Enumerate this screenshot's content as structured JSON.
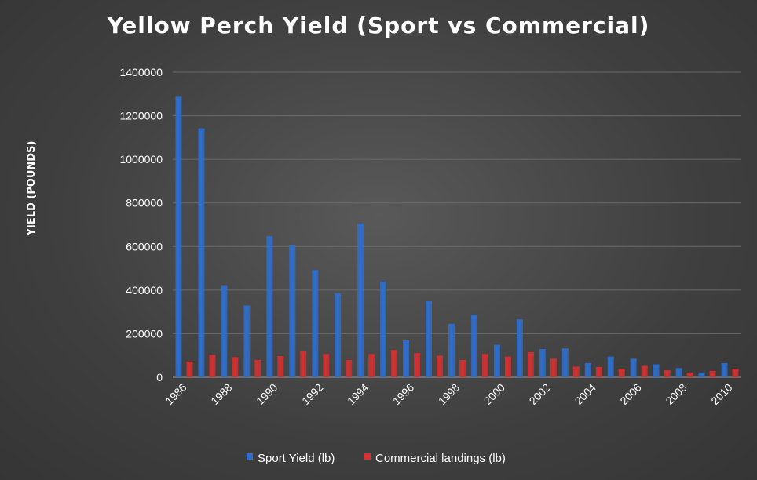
{
  "chart_data": {
    "type": "bar",
    "title": "Yellow Perch Yield (Sport vs Commercial)",
    "xlabel": "",
    "ylabel": "YIELD (POUNDS)",
    "ylim": [
      0,
      1400000
    ],
    "yticks": [
      0,
      200000,
      400000,
      600000,
      800000,
      1000000,
      1200000,
      1400000
    ],
    "ytick_labels": [
      "0",
      "200000",
      "400000",
      "600000",
      "800000",
      "1000000",
      "1200000",
      "1400000"
    ],
    "categories": [
      "1986",
      "1987",
      "1988",
      "1989",
      "1990",
      "1991",
      "1992",
      "1993",
      "1994",
      "1995",
      "1996",
      "1997",
      "1998",
      "1999",
      "2000",
      "2001",
      "2002",
      "2003",
      "2004",
      "2005",
      "2006",
      "2007",
      "2008",
      "2009",
      "2010"
    ],
    "xtick_labels_shown": [
      "1986",
      "1988",
      "1990",
      "1992",
      "1994",
      "1996",
      "1998",
      "2000",
      "2002",
      "2004",
      "2006",
      "2008",
      "2010"
    ],
    "series": [
      {
        "name": "Sport Yield (lb)",
        "color": "#2e6fd0",
        "values": [
          1280000,
          1135000,
          412000,
          322000,
          640000,
          598000,
          485000,
          378000,
          698000,
          432000,
          162000,
          342000,
          238000,
          280000,
          142000,
          258000,
          122000,
          125000,
          58000,
          88000,
          78000,
          52000,
          35000,
          15000,
          58000
        ]
      },
      {
        "name": "Commercial landings (lb)",
        "color": "#d63030",
        "values": [
          65000,
          96000,
          85000,
          72000,
          90000,
          112000,
          100000,
          72000,
          100000,
          118000,
          104000,
          92000,
          72000,
          100000,
          88000,
          108000,
          78000,
          42000,
          40000,
          32000,
          45000,
          25000,
          15000,
          22000,
          32000
        ]
      }
    ],
    "grid": true,
    "legend_position": "bottom-center"
  }
}
